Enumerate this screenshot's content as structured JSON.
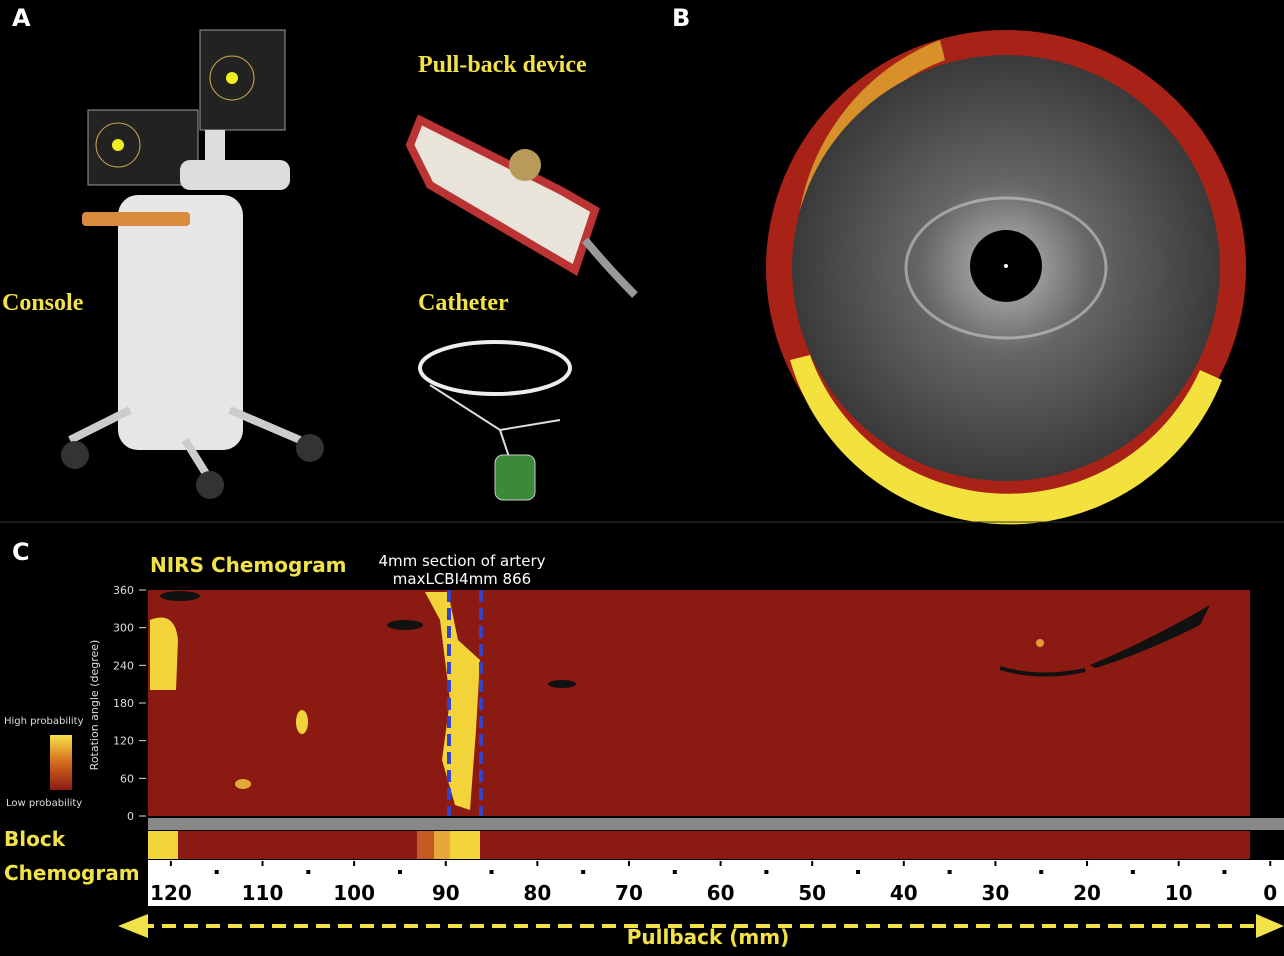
{
  "panels": {
    "a": {
      "label": "A",
      "console": "Console",
      "pullback_device": "Pull-back device",
      "catheter": "Catheter"
    },
    "b": {
      "label": "B"
    },
    "c": {
      "label": "C",
      "title": "NIRS Chemogram",
      "annotation": [
        "4mm section of artery",
        "maxLCBI4mm 866"
      ],
      "legend_high": "High probability",
      "legend_low": "Low probability",
      "y_label": "Rotation angle (degree)",
      "block": "Block",
      "chemogram": "Chemogram",
      "x_label": "Pullback (mm)",
      "xlim": [
        122.5,
        -1.5
      ],
      "xticks": [
        120,
        110,
        100,
        90,
        80,
        70,
        60,
        50,
        40,
        30,
        20,
        10,
        0
      ],
      "ylim": [
        0,
        360
      ],
      "yticks": [
        0,
        60,
        120,
        180,
        240,
        300,
        360
      ]
    }
  }
}
